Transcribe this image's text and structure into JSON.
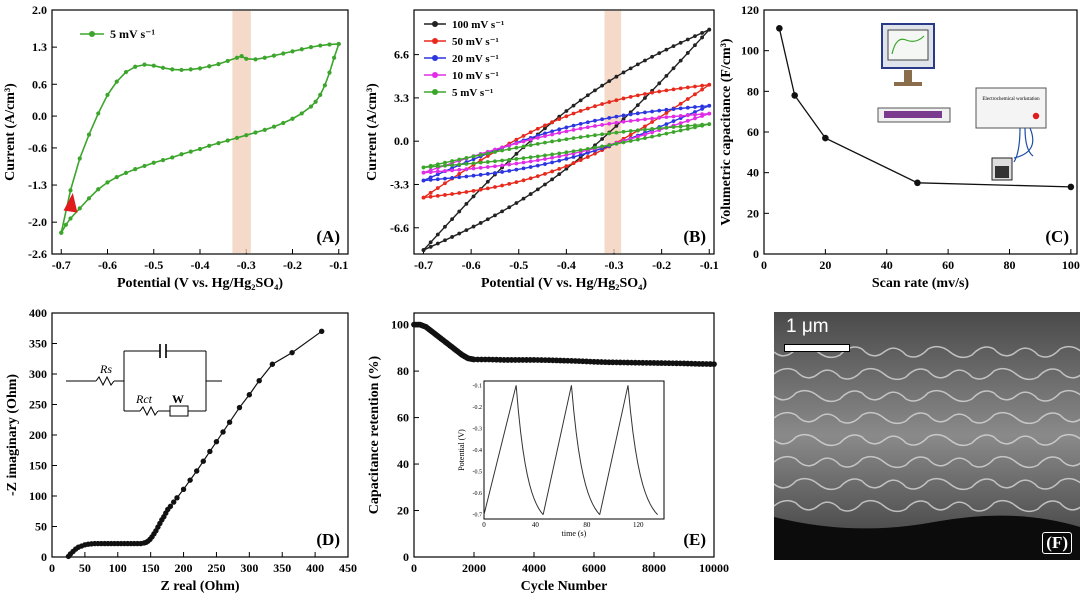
{
  "chart_data": [
    {
      "panel": "A",
      "type": "line",
      "xlabel": "Potential (V vs. Hg/Hg₂SO₄)",
      "ylabel": "Current (A/cm³)",
      "xlim": [
        -0.72,
        -0.08
      ],
      "ylim": [
        -2.6,
        2.0
      ],
      "xticks": [
        "-0.7",
        "-0.6",
        "-0.5",
        "-0.4",
        "-0.3",
        "-0.2",
        "-0.1"
      ],
      "yticks": [
        "2.0",
        "1.3",
        "0.6",
        "0.0",
        "-0.6",
        "-1.3",
        "-2.0",
        "-2.6"
      ],
      "highlight_band": [
        -0.33,
        -0.29
      ],
      "series": [
        {
          "name": "5 mV s⁻¹",
          "color": "#3ca52c",
          "upper_x": [
            -0.7,
            -0.68,
            -0.66,
            -0.64,
            -0.62,
            -0.6,
            -0.58,
            -0.56,
            -0.54,
            -0.52,
            -0.5,
            -0.48,
            -0.46,
            -0.44,
            -0.42,
            -0.4,
            -0.38,
            -0.36,
            -0.34,
            -0.32,
            -0.31,
            -0.3,
            -0.28,
            -0.26,
            -0.24,
            -0.22,
            -0.2,
            -0.18,
            -0.16,
            -0.14,
            -0.12,
            -0.1
          ],
          "upper_y": [
            -2.2,
            -1.4,
            -0.8,
            -0.35,
            0.05,
            0.4,
            0.65,
            0.83,
            0.93,
            0.97,
            0.95,
            0.91,
            0.88,
            0.87,
            0.88,
            0.9,
            0.94,
            0.98,
            1.04,
            1.1,
            1.13,
            1.08,
            1.07,
            1.1,
            1.14,
            1.18,
            1.22,
            1.26,
            1.3,
            1.33,
            1.35,
            1.36
          ],
          "lower_x": [
            -0.1,
            -0.11,
            -0.12,
            -0.13,
            -0.14,
            -0.15,
            -0.16,
            -0.18,
            -0.2,
            -0.22,
            -0.24,
            -0.26,
            -0.28,
            -0.3,
            -0.32,
            -0.34,
            -0.36,
            -0.38,
            -0.4,
            -0.42,
            -0.44,
            -0.46,
            -0.48,
            -0.5,
            -0.52,
            -0.54,
            -0.56,
            -0.58,
            -0.6,
            -0.62,
            -0.64,
            -0.66,
            -0.68,
            -0.69,
            -0.7
          ],
          "lower_y": [
            1.36,
            1.1,
            0.82,
            0.58,
            0.4,
            0.27,
            0.18,
            0.05,
            -0.05,
            -0.13,
            -0.2,
            -0.26,
            -0.31,
            -0.36,
            -0.41,
            -0.46,
            -0.51,
            -0.56,
            -0.62,
            -0.67,
            -0.72,
            -0.78,
            -0.83,
            -0.88,
            -0.94,
            -1.0,
            -1.07,
            -1.15,
            -1.25,
            -1.38,
            -1.55,
            -1.74,
            -1.93,
            -2.05,
            -2.2
          ]
        }
      ],
      "panel_label": "(A)"
    },
    {
      "panel": "B",
      "type": "line",
      "xlabel": "Potential (V vs. Hg/Hg₂SO₄)",
      "ylabel": "Current (A/cm³)",
      "xlim": [
        -0.72,
        -0.09
      ],
      "ylim": [
        -8.6,
        10.0
      ],
      "xticks": [
        "-0.7",
        "-0.6",
        "-0.5",
        "-0.4",
        "-0.3",
        "-0.2",
        "-0.1"
      ],
      "yticks": [
        "6.6",
        "3.3",
        "0.0",
        "-3.3",
        "-6.6"
      ],
      "highlight_band": [
        -0.32,
        -0.285
      ],
      "series": [
        {
          "name": "100 mV s⁻¹",
          "color": "#222222",
          "x_start": -0.7,
          "x_end": -0.1,
          "end_val": 8.5,
          "start_val": -8.3,
          "hyst": 2.2
        },
        {
          "name": "50 mV s⁻¹",
          "color": "#e8291c",
          "x_start": -0.7,
          "x_end": -0.1,
          "end_val": 4.3,
          "start_val": -4.3,
          "hyst": 1.9
        },
        {
          "name": "20 mV s⁻¹",
          "color": "#2b36e0",
          "x_start": -0.7,
          "x_end": -0.1,
          "end_val": 2.7,
          "start_val": -3.0,
          "hyst": 1.2
        },
        {
          "name": "10 mV s⁻¹",
          "color": "#e12ee6",
          "x_start": -0.7,
          "x_end": -0.1,
          "end_val": 2.1,
          "start_val": -2.4,
          "hyst": 0.9
        },
        {
          "name": "5 mV s⁻¹",
          "color": "#3ca52c",
          "x_start": -0.7,
          "x_end": -0.1,
          "end_val": 1.3,
          "start_val": -2.0,
          "hyst": 0.5
        }
      ],
      "panel_label": "(B)"
    },
    {
      "panel": "C",
      "type": "line",
      "xlabel": "Scan rate (mv/s)",
      "ylabel": "Volumetric capacitance (F/cm³)",
      "xlim": [
        0,
        102
      ],
      "ylim": [
        0,
        120
      ],
      "xticks": [
        "0",
        "20",
        "40",
        "60",
        "80",
        "100"
      ],
      "yticks": [
        "0",
        "20",
        "40",
        "60",
        "80",
        "100",
        "120"
      ],
      "x": [
        5,
        10,
        20,
        50,
        100
      ],
      "y": [
        111,
        78,
        57,
        35,
        33
      ],
      "inset_label": "Electrochemical workstation",
      "panel_label": "(C)"
    },
    {
      "panel": "D",
      "type": "scatter",
      "xlabel": "Z real (Ohm)",
      "ylabel": "-Z imaginary (Ohm)",
      "xlim": [
        0,
        450
      ],
      "ylim": [
        0,
        400
      ],
      "xticks": [
        "0",
        "50",
        "100",
        "150",
        "200",
        "250",
        "300",
        "350",
        "400",
        "450"
      ],
      "yticks": [
        "0",
        "50",
        "100",
        "150",
        "200",
        "250",
        "300",
        "350",
        "400"
      ],
      "x": [
        25,
        28,
        32,
        36,
        40,
        45,
        50,
        55,
        60,
        65,
        70,
        75,
        80,
        85,
        90,
        95,
        100,
        105,
        110,
        115,
        120,
        125,
        130,
        135,
        140,
        143,
        146,
        149,
        152,
        155,
        158,
        161,
        164,
        167,
        170,
        173,
        176,
        180,
        185,
        190,
        200,
        210,
        220,
        230,
        240,
        250,
        260,
        270,
        285,
        300,
        315,
        335,
        365,
        410
      ],
      "y": [
        1,
        5,
        9,
        13,
        16,
        18,
        20,
        21,
        21.5,
        22,
        22,
        22,
        22,
        22,
        22,
        22,
        22,
        22,
        22,
        22,
        22,
        22,
        22,
        22,
        23,
        24,
        26,
        29,
        33,
        38,
        43,
        49,
        55,
        61,
        66,
        72,
        78,
        83,
        90,
        97,
        111,
        126,
        141,
        157,
        173,
        189,
        205,
        221,
        245,
        266,
        289,
        316,
        335,
        370
      ],
      "circuit": {
        "rs": "Rs",
        "rct": "Rct",
        "w": "W"
      },
      "panel_label": "(D)"
    },
    {
      "panel": "E",
      "type": "scatter",
      "xlabel": "Cycle Number",
      "ylabel": "Capacitance retention (%)",
      "xlim": [
        0,
        10000
      ],
      "ylim": [
        0,
        105
      ],
      "xticks": [
        "0",
        "2000",
        "4000",
        "6000",
        "8000",
        "10000"
      ],
      "yticks": [
        "0",
        "20",
        "40",
        "60",
        "80",
        "100"
      ],
      "x": [
        0,
        200,
        400,
        600,
        800,
        1000,
        1200,
        1400,
        1600,
        1800,
        2000,
        2500,
        3000,
        3500,
        4000,
        4500,
        5000,
        5500,
        6000,
        6500,
        7000,
        7500,
        8000,
        8500,
        9000,
        9500,
        10000
      ],
      "y": [
        100,
        100,
        99,
        97,
        95,
        93,
        91,
        89,
        87,
        85.5,
        85,
        85,
        84.8,
        84.8,
        84.8,
        84.7,
        84.5,
        84.3,
        84,
        83.8,
        83.7,
        83.6,
        83.5,
        83.4,
        83.3,
        83.1,
        83
      ],
      "inset": {
        "xlabel": "time (s)",
        "ylabel": "Potential (V)",
        "xticks": [
          "0",
          "40",
          "80",
          "120"
        ],
        "yticks": [
          "-0.1",
          "-0.2",
          "-0.3",
          "-0.4",
          "-0.5",
          "-0.6",
          "-0.7"
        ],
        "xlim": [
          0,
          140
        ],
        "ylim": [
          -0.72,
          -0.08
        ],
        "cycles": [
          [
            0,
            25,
            46
          ],
          [
            46,
            68,
            90
          ],
          [
            90,
            112,
            135
          ]
        ]
      },
      "panel_label": "(E)"
    }
  ],
  "sem": {
    "scale_label": "1 μm",
    "panel_label": "(F)"
  }
}
